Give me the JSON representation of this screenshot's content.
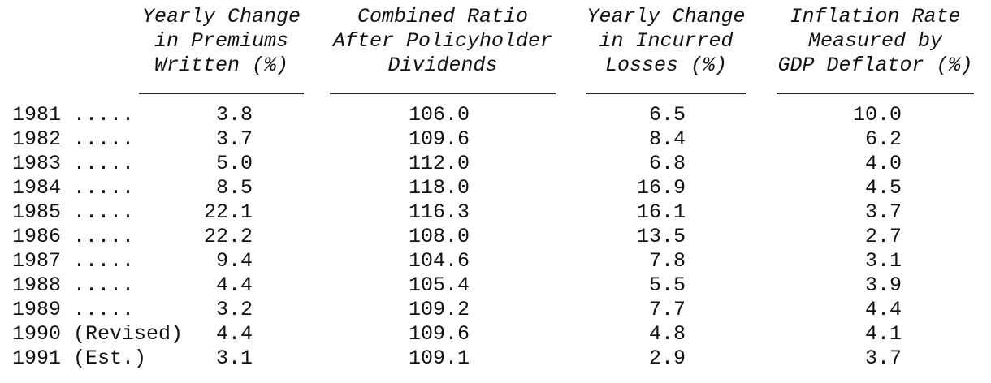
{
  "table": {
    "headers": [
      [
        "Yearly Change",
        "in Premiums",
        "Written (%)"
      ],
      [
        "Combined Ratio",
        "After Policyholder",
        "Dividends"
      ],
      [
        "Yearly Change",
        "in Incurred",
        "Losses (%)"
      ],
      [
        "Inflation Rate",
        "Measured by",
        "GDP Deflator (%)"
      ]
    ],
    "rows": [
      [
        "1981 .....",
        "3.8",
        "106.0",
        "6.5",
        "10.0"
      ],
      [
        "1982 .....",
        "3.7",
        "109.6",
        "8.4",
        "6.2"
      ],
      [
        "1983 .....",
        "5.0",
        "112.0",
        "6.8",
        "4.0"
      ],
      [
        "1984 .....",
        "8.5",
        "118.0",
        "16.9",
        "4.5"
      ],
      [
        "1985 .....",
        "22.1",
        "116.3",
        "16.1",
        "3.7"
      ],
      [
        "1986 .....",
        "22.2",
        "108.0",
        "13.5",
        "2.7"
      ],
      [
        "1987 .....",
        "9.4",
        "104.6",
        "7.8",
        "3.1"
      ],
      [
        "1988 .....",
        "4.4",
        "105.4",
        "5.5",
        "3.9"
      ],
      [
        "1989 .....",
        "3.2",
        "109.2",
        "7.7",
        "4.4"
      ],
      [
        "1990 (Revised)",
        "4.4",
        "109.6",
        "4.8",
        "4.1"
      ],
      [
        "1991 (Est.)",
        "3.1",
        "109.1",
        "2.9",
        "3.7"
      ]
    ]
  }
}
